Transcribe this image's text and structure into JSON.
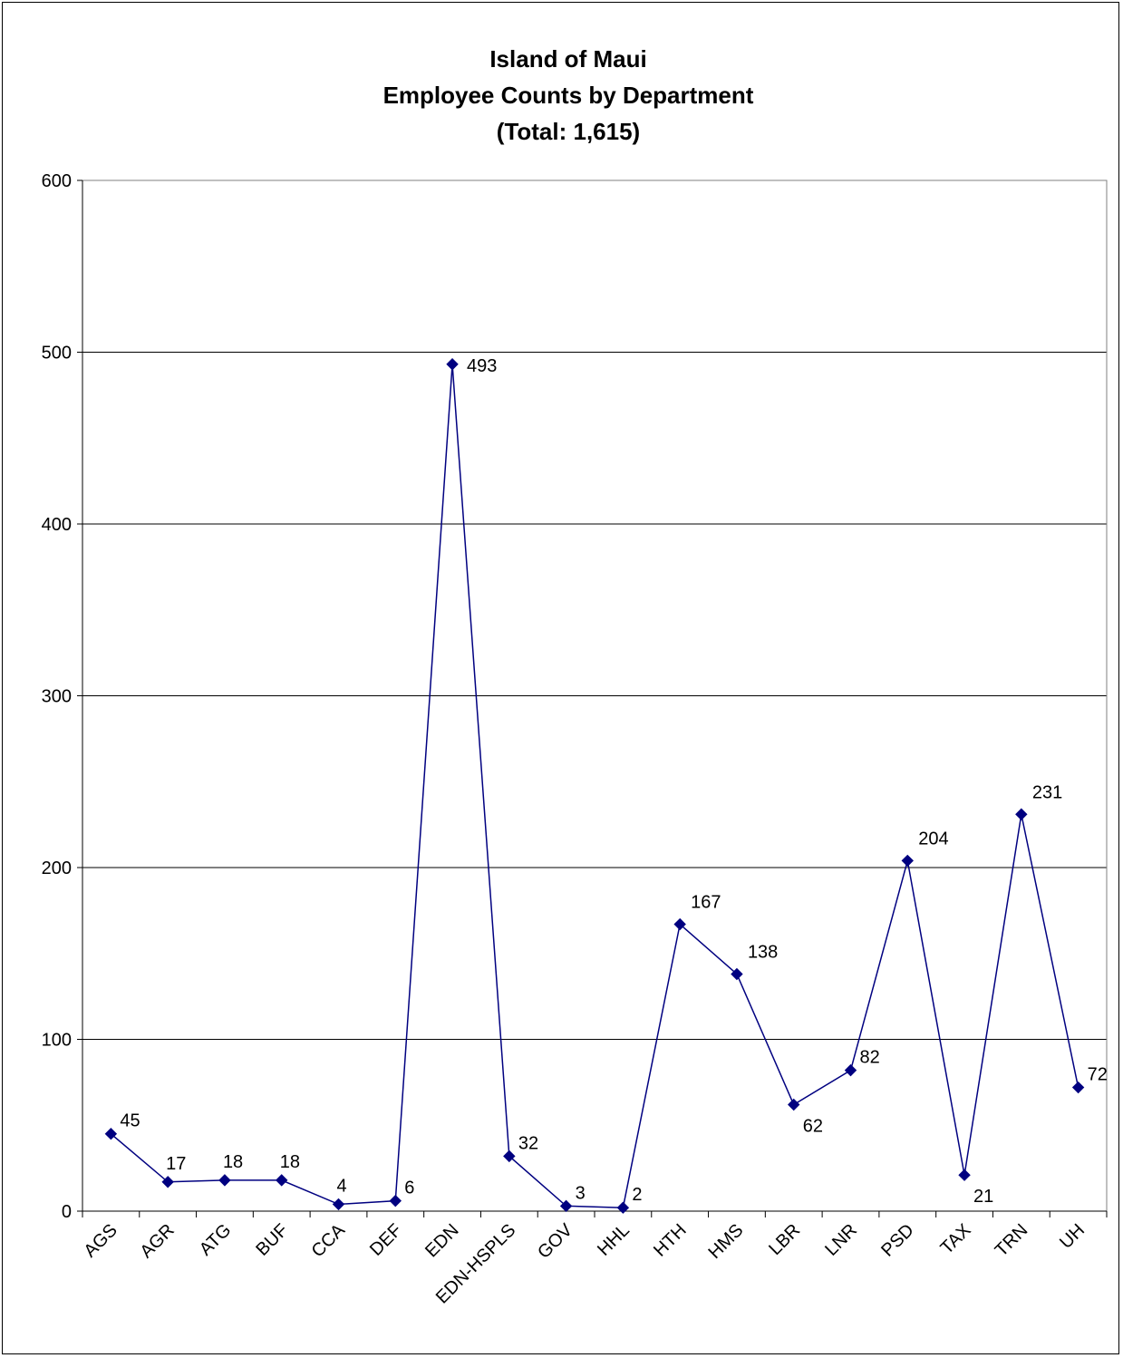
{
  "chart_data": {
    "type": "line",
    "title": [
      "Island of Maui",
      "Employee Counts by Department",
      "(Total:  1,615)"
    ],
    "categories": [
      "AGS",
      "AGR",
      "ATG",
      "BUF",
      "CCA",
      "DEF",
      "EDN",
      "EDN-HSPLS",
      "GOV",
      "HHL",
      "HTH",
      "HMS",
      "LBR",
      "LNR",
      "PSD",
      "TAX",
      "TRN",
      "UH"
    ],
    "values": [
      45,
      17,
      18,
      18,
      4,
      6,
      493,
      32,
      3,
      2,
      167,
      138,
      62,
      82,
      204,
      21,
      231,
      72
    ],
    "data_labels": [
      "45",
      "17",
      "18",
      "18",
      "4",
      "6",
      "493",
      "32",
      "3",
      "2",
      "167",
      "138",
      "62",
      "82",
      "204",
      "21",
      "231",
      "72"
    ],
    "y_ticks": [
      0,
      100,
      200,
      300,
      400,
      500,
      600
    ],
    "ylim": [
      0,
      600
    ],
    "xlabel": "",
    "ylabel": "",
    "grid": "horizontal",
    "legend": "none",
    "line_color": "#000080",
    "marker": "diamond"
  }
}
